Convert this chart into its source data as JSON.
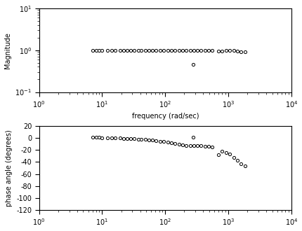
{
  "xlabel": "frequency (rad/sec)",
  "ylabel_mag": "Magnitude",
  "ylabel_phase": "phase angle (degrees)",
  "xlim": [
    1,
    10000
  ],
  "mag_ylim": [
    0.1,
    10
  ],
  "mag_yticks": [
    0.1,
    1.0,
    10.0
  ],
  "phase_ylim": [
    -120,
    20
  ],
  "phase_yticks": [
    -120,
    -100,
    -80,
    -60,
    -40,
    -20,
    0,
    20
  ],
  "marker": "o",
  "marker_size": 3,
  "marker_facecolor": "white",
  "marker_edgecolor": "black",
  "marker_linewidth": 0.7,
  "background_color": "white",
  "font_size": 7,
  "mag_freq": [
    7,
    8,
    9,
    10,
    12,
    14,
    16,
    19,
    22,
    25,
    28,
    32,
    37,
    42,
    48,
    55,
    63,
    72,
    83,
    95,
    109,
    125,
    143,
    164,
    188,
    215,
    247,
    283,
    324,
    371,
    425,
    487,
    558,
    280,
    700,
    800,
    920,
    1055,
    1210,
    1387,
    1590,
    1823
  ],
  "mag_vals": [
    1.0,
    1.0,
    1.0,
    1.0,
    1.0,
    1.0,
    1.0,
    1.0,
    1.0,
    1.0,
    1.0,
    1.0,
    1.0,
    1.0,
    1.0,
    1.0,
    1.0,
    1.0,
    1.0,
    1.0,
    1.0,
    1.0,
    1.0,
    1.0,
    1.0,
    1.0,
    1.0,
    1.0,
    1.0,
    1.0,
    1.0,
    1.0,
    1.0,
    0.45,
    0.95,
    0.95,
    0.97,
    0.98,
    0.97,
    0.95,
    0.93,
    0.9
  ],
  "phase_freq": [
    7,
    8,
    9,
    10,
    12,
    14,
    16,
    19,
    22,
    25,
    28,
    32,
    37,
    42,
    48,
    55,
    63,
    72,
    83,
    95,
    109,
    125,
    143,
    164,
    188,
    215,
    247,
    283,
    324,
    371,
    425,
    487,
    558,
    280,
    700,
    800,
    920,
    1055,
    1210,
    1387,
    1590,
    1823
  ],
  "phase_vals": [
    2,
    1,
    1,
    0,
    0,
    0,
    0,
    0,
    -1,
    -1,
    -1,
    -1,
    -2,
    -2,
    -2,
    -3,
    -3,
    -4,
    -5,
    -6,
    -7,
    -8,
    -9,
    -10,
    -11,
    -12,
    -13,
    -13,
    -13,
    -13,
    -14,
    -14,
    -15,
    2,
    -28,
    -22,
    -24,
    -27,
    -32,
    -37,
    -43,
    -47
  ]
}
